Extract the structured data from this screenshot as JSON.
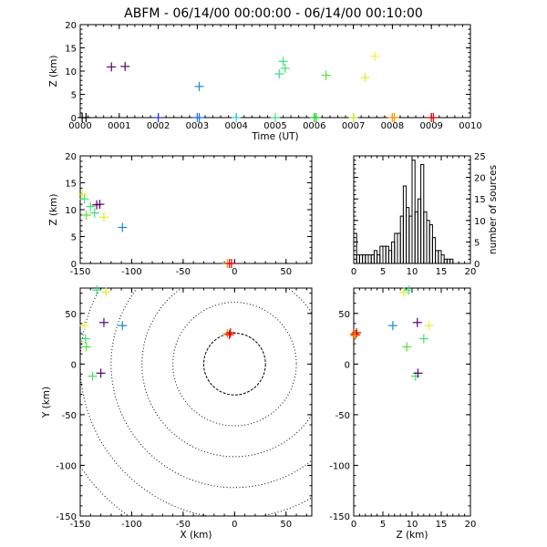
{
  "title": "ABFM - 06/14/00 00:00:00 - 06/14/00 00:10:00",
  "chart_data": [
    {
      "id": "time-z",
      "type": "scatter",
      "xlabel": "Time (UT)",
      "ylabel": "Z (km)",
      "xlim": [
        0,
        10
      ],
      "ylim": [
        0,
        20
      ],
      "xticks": [
        "0000",
        "0001",
        "0002",
        "0003",
        "0004",
        "0005",
        "0006",
        "0007",
        "0008",
        "0009",
        "0010"
      ],
      "yticks": [
        "0",
        "5",
        "10",
        "15",
        "20"
      ],
      "points": [
        {
          "x": 0.05,
          "y": 0.0,
          "color": "#000000"
        },
        {
          "x": 0.15,
          "y": 0.0,
          "color": "#000000"
        },
        {
          "x": 0.8,
          "y": 10.9,
          "color": "#5a0078"
        },
        {
          "x": 1.15,
          "y": 11.0,
          "color": "#5a0078"
        },
        {
          "x": 2.0,
          "y": 0.0,
          "color": "#2030d0"
        },
        {
          "x": 3.0,
          "y": 0.0,
          "color": "#1f78e8"
        },
        {
          "x": 3.05,
          "y": 0.0,
          "color": "#2068ff"
        },
        {
          "x": 3.05,
          "y": 6.7,
          "color": "#1a8ac8"
        },
        {
          "x": 4.0,
          "y": 0.0,
          "color": "#30d8e0"
        },
        {
          "x": 5.0,
          "y": 0.0,
          "color": "#38e088"
        },
        {
          "x": 5.1,
          "y": 9.4,
          "color": "#38e088"
        },
        {
          "x": 5.2,
          "y": 12.1,
          "color": "#38e088"
        },
        {
          "x": 5.25,
          "y": 10.6,
          "color": "#40e070"
        },
        {
          "x": 6.0,
          "y": 0.0,
          "color": "#20d020"
        },
        {
          "x": 6.05,
          "y": 0.0,
          "color": "#20d020"
        },
        {
          "x": 6.3,
          "y": 9.1,
          "color": "#58e030"
        },
        {
          "x": 7.0,
          "y": 0.0,
          "color": "#c8e820"
        },
        {
          "x": 7.3,
          "y": 8.6,
          "color": "#e0f020"
        },
        {
          "x": 7.55,
          "y": 13.2,
          "color": "#f0f040"
        },
        {
          "x": 8.0,
          "y": 0.0,
          "color": "#ffa000"
        },
        {
          "x": 8.05,
          "y": 0.0,
          "color": "#ff9000"
        },
        {
          "x": 9.0,
          "y": 0.0,
          "color": "#e00000"
        },
        {
          "x": 9.05,
          "y": 0.0,
          "color": "#d80000"
        }
      ]
    },
    {
      "id": "x-z",
      "type": "scatter",
      "xlabel": "",
      "ylabel": "Z (km)",
      "xlim": [
        -150,
        75
      ],
      "ylim": [
        0,
        20
      ],
      "xticks": [
        "-150",
        "-100",
        "-50",
        "0",
        "50"
      ],
      "yticks": [
        "0",
        "5",
        "10",
        "15",
        "20"
      ],
      "points": [
        {
          "x": -148,
          "y": 12.9,
          "color": "#e8f040"
        },
        {
          "x": -146,
          "y": 12.0,
          "color": "#40e070"
        },
        {
          "x": -144,
          "y": 9.0,
          "color": "#58e030"
        },
        {
          "x": -140,
          "y": 10.6,
          "color": "#40e070"
        },
        {
          "x": -136,
          "y": 9.4,
          "color": "#38e088"
        },
        {
          "x": -134,
          "y": 10.9,
          "color": "#5a0078"
        },
        {
          "x": -131,
          "y": 11.0,
          "color": "#5a0078"
        },
        {
          "x": -127,
          "y": 8.6,
          "color": "#e0f020"
        },
        {
          "x": -109,
          "y": 6.7,
          "color": "#1a8ac8"
        },
        {
          "x": -7,
          "y": 0.0,
          "color": "#ff9000"
        },
        {
          "x": -5,
          "y": 0.0,
          "color": "#e00000"
        },
        {
          "x": -3,
          "y": 0.0,
          "color": "#d80000"
        }
      ]
    },
    {
      "id": "histogram",
      "type": "bar",
      "xlabel": "",
      "ylabel": "number of sources",
      "xlim": [
        0,
        20
      ],
      "ylim": [
        0,
        25
      ],
      "xticks": [
        "0",
        "5",
        "10",
        "15",
        "20"
      ],
      "yticks": [
        "0",
        "5",
        "10",
        "15",
        "20",
        "25"
      ],
      "bin_width": 0.5,
      "bins": [
        0.0,
        0.5,
        1.0,
        1.5,
        2.0,
        2.5,
        3.0,
        3.5,
        4.0,
        4.5,
        5.0,
        5.5,
        6.0,
        6.5,
        7.0,
        7.5,
        8.0,
        8.5,
        9.0,
        9.5,
        10.0,
        10.5,
        11.0,
        11.5,
        12.0,
        12.5,
        13.0,
        13.5,
        14.0,
        14.5,
        15.0,
        15.5,
        16.0,
        16.5
      ],
      "counts": [
        7,
        2,
        2,
        2,
        2,
        2,
        2,
        3,
        2,
        4,
        4,
        4,
        3,
        5,
        7,
        7,
        11,
        18,
        13,
        11,
        24,
        12,
        15,
        23,
        12,
        10,
        9,
        6,
        3,
        3,
        2,
        1,
        1,
        1
      ]
    },
    {
      "id": "x-y",
      "type": "scatter",
      "xlabel": "X (km)",
      "ylabel": "Y (km)",
      "xlim": [
        -150,
        75
      ],
      "ylim": [
        -150,
        75
      ],
      "xticks": [
        "-150",
        "-100",
        "-50",
        "0",
        "50"
      ],
      "yticks": [
        "-150",
        "-100",
        "-50",
        "0",
        "50"
      ],
      "range_rings_km": [
        30,
        60,
        90,
        120,
        150,
        180
      ],
      "points": [
        {
          "x": -146,
          "y": 38,
          "color": "#e8f040"
        },
        {
          "x": -145,
          "y": 25,
          "color": "#40e070"
        },
        {
          "x": -144,
          "y": 17,
          "color": "#58e030"
        },
        {
          "x": -138,
          "y": -12,
          "color": "#40e070"
        },
        {
          "x": -134,
          "y": 73,
          "color": "#38e088"
        },
        {
          "x": -130,
          "y": -9,
          "color": "#5a0078"
        },
        {
          "x": -127,
          "y": 41,
          "color": "#5a0078"
        },
        {
          "x": -125,
          "y": 71,
          "color": "#e0f020"
        },
        {
          "x": -109,
          "y": 38,
          "color": "#1a8ac8"
        },
        {
          "x": -7,
          "y": 30,
          "color": "#ff9000"
        },
        {
          "x": -5,
          "y": 29,
          "color": "#e00000"
        },
        {
          "x": -4,
          "y": 31,
          "color": "#d80000"
        }
      ]
    },
    {
      "id": "z-y",
      "type": "scatter",
      "xlabel": "Z (km)",
      "ylabel": "",
      "xlim": [
        0,
        20
      ],
      "ylim": [
        -150,
        75
      ],
      "xticks": [
        "0",
        "5",
        "10",
        "15",
        "20"
      ],
      "yticks": [
        "-150",
        "-100",
        "-50",
        "0",
        "50"
      ],
      "points": [
        {
          "x": 0.1,
          "y": 30,
          "color": "#ff9000"
        },
        {
          "x": 0.3,
          "y": 29,
          "color": "#e00000"
        },
        {
          "x": 0.5,
          "y": 31,
          "color": "#d80000"
        },
        {
          "x": 0.2,
          "y": 28,
          "color": "#ffa000"
        },
        {
          "x": 6.7,
          "y": 38,
          "color": "#1a8ac8"
        },
        {
          "x": 8.6,
          "y": 71,
          "color": "#e0f020"
        },
        {
          "x": 9.1,
          "y": 17,
          "color": "#58e030"
        },
        {
          "x": 9.4,
          "y": 73,
          "color": "#38e088"
        },
        {
          "x": 10.6,
          "y": -12,
          "color": "#40e070"
        },
        {
          "x": 10.9,
          "y": 41,
          "color": "#5a0078"
        },
        {
          "x": 11.0,
          "y": -9,
          "color": "#5a0078"
        },
        {
          "x": 12.0,
          "y": 25,
          "color": "#40e070"
        },
        {
          "x": 12.9,
          "y": 38,
          "color": "#e8f040"
        }
      ]
    }
  ]
}
